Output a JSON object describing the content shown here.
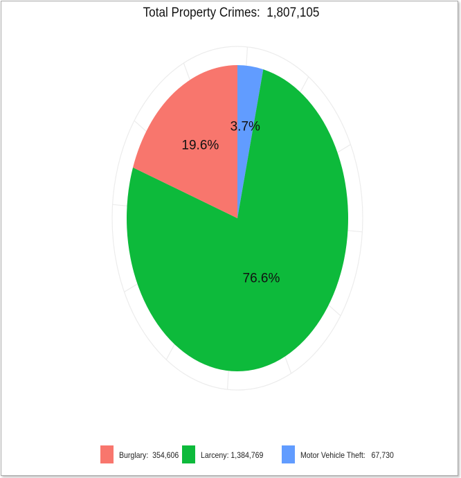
{
  "chart_data": {
    "type": "pie",
    "title": "Total Property Crimes:  1,807,105",
    "slices": [
      {
        "name": "Burglary",
        "value": 354606,
        "value_label": "354,606",
        "percent_label": "19.6%",
        "color": "#F8766D",
        "legend_label": "Burglary:  354,606"
      },
      {
        "name": "Larceny",
        "value": 1384769,
        "value_label": "1,384,769",
        "percent_label": "76.6%",
        "color": "#0DBA3B",
        "legend_label": "Larceny: 1,384,769"
      },
      {
        "name": "Motor Vehicle Theft",
        "value": 67730,
        "value_label": "67,730",
        "percent_label": "3.7%",
        "color": "#619CFF",
        "legend_label": "Motor Vehicle Theft:   67,730"
      }
    ],
    "legend_position": "bottom",
    "grid": true
  }
}
